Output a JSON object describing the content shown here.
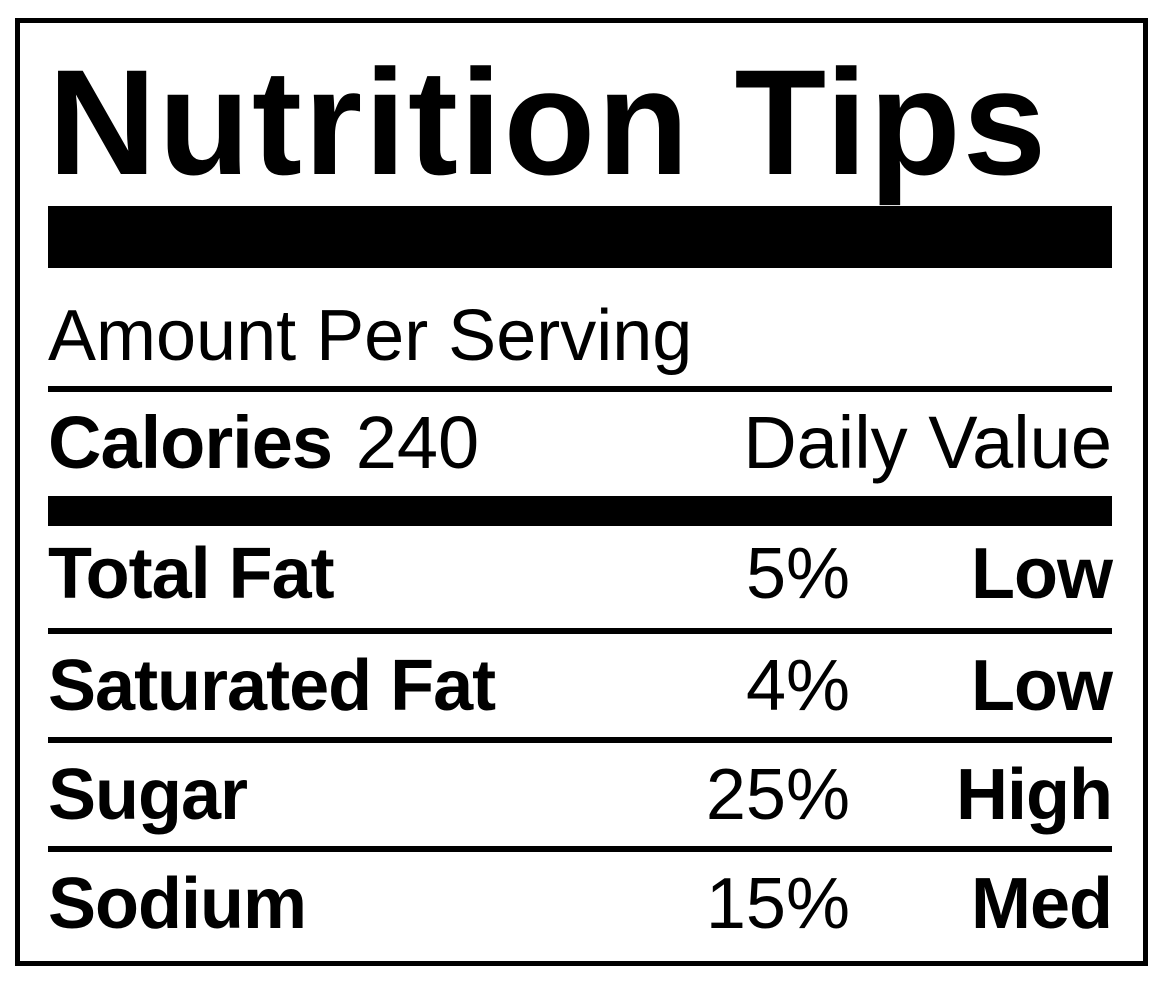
{
  "label": {
    "title": "Nutrition Tips",
    "serving_header": "Amount Per Serving",
    "calories": {
      "label": "Calories",
      "value": "240"
    },
    "daily_value_header": "Daily Value",
    "rows": [
      {
        "name": "Total Fat",
        "percent": "5%",
        "level": "Low"
      },
      {
        "name": "Saturated Fat",
        "percent": "4%",
        "level": "Low"
      },
      {
        "name": "Sugar",
        "percent": "25%",
        "level": "High"
      },
      {
        "name": "Sodium",
        "percent": "15%",
        "level": "Med"
      }
    ],
    "colors": {
      "ink": "#000000",
      "background": "#ffffff"
    }
  }
}
